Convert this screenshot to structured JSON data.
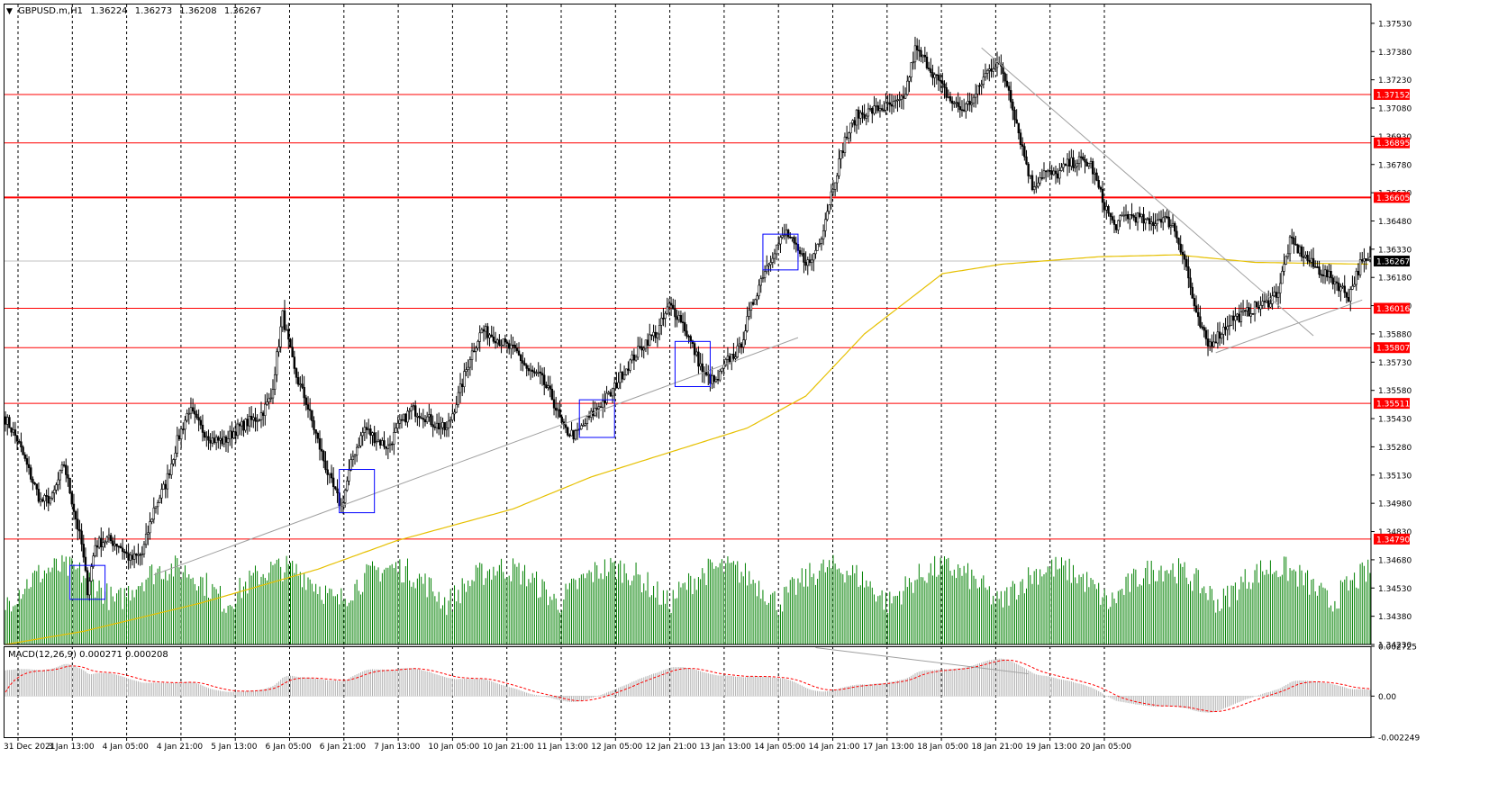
{
  "chart_data": [
    {
      "type": "candlestick",
      "header": {
        "symbol": "GBPUSD.m,H1",
        "open": "1.36224",
        "high": "1.36273",
        "low": "1.36208",
        "close": "1.36267"
      },
      "ylim": [
        1.3423,
        1.3763
      ],
      "y_ticks": [
        "1.37530",
        "1.37380",
        "1.37230",
        "1.37080",
        "1.36930",
        "1.36780",
        "1.36630",
        "1.36480",
        "1.36330",
        "1.36180",
        "1.36030",
        "1.35880",
        "1.35730",
        "1.35580",
        "1.35430",
        "1.35280",
        "1.35130",
        "1.34980",
        "1.34830",
        "1.34680",
        "1.34530",
        "1.34380",
        "1.34230"
      ],
      "x_ticks": [
        "31 Dec 2021",
        "3 Jan 13:00",
        "4 Jan 05:00",
        "4 Jan 21:00",
        "5 Jan 13:00",
        "6 Jan 05:00",
        "6 Jan 21:00",
        "7 Jan 13:00",
        "10 Jan 05:00",
        "10 Jan 21:00",
        "11 Jan 13:00",
        "12 Jan 05:00",
        "12 Jan 21:00",
        "13 Jan 13:00",
        "14 Jan 05:00",
        "14 Jan 21:00",
        "17 Jan 13:00",
        "18 Jan 05:00",
        "18 Jan 21:00",
        "19 Jan 13:00",
        "20 Jan 05:00"
      ],
      "current_price": "1.36267",
      "horizontal_levels": [
        {
          "value": 1.37152,
          "label": "1.37152"
        },
        {
          "value": 1.36895,
          "label": "1.36895"
        },
        {
          "value": 1.36605,
          "label": "1.36605"
        },
        {
          "value": 1.36016,
          "label": "1.36016"
        },
        {
          "value": 1.35807,
          "label": "1.35807"
        },
        {
          "value": 1.35511,
          "label": "1.35511"
        },
        {
          "value": 1.3479,
          "label": "1.34790"
        }
      ],
      "close_path": [
        [
          0,
          1.3543
        ],
        [
          6,
          1.3532
        ],
        [
          12,
          1.3515
        ],
        [
          18,
          1.3499
        ],
        [
          24,
          1.3501
        ],
        [
          30,
          1.3519
        ],
        [
          36,
          1.349
        ],
        [
          39,
          1.3476
        ],
        [
          42,
          1.3452
        ],
        [
          46,
          1.3476
        ],
        [
          52,
          1.3479
        ],
        [
          58,
          1.3476
        ],
        [
          64,
          1.3468
        ],
        [
          70,
          1.3471
        ],
        [
          76,
          1.3495
        ],
        [
          82,
          1.3508
        ],
        [
          88,
          1.3531
        ],
        [
          94,
          1.3548
        ],
        [
          100,
          1.3538
        ],
        [
          106,
          1.3532
        ],
        [
          112,
          1.3531
        ],
        [
          118,
          1.3537
        ],
        [
          124,
          1.3541
        ],
        [
          130,
          1.3544
        ],
        [
          136,
          1.3554
        ],
        [
          142,
          1.3598
        ],
        [
          148,
          1.3568
        ],
        [
          154,
          1.3552
        ],
        [
          160,
          1.3531
        ],
        [
          166,
          1.3511
        ],
        [
          172,
          1.3496
        ],
        [
          178,
          1.3523
        ],
        [
          184,
          1.3538
        ],
        [
          190,
          1.3532
        ],
        [
          196,
          1.3528
        ],
        [
          202,
          1.354
        ],
        [
          208,
          1.3548
        ],
        [
          214,
          1.3545
        ],
        [
          220,
          1.354
        ],
        [
          226,
          1.3537
        ],
        [
          232,
          1.3555
        ],
        [
          238,
          1.3576
        ],
        [
          244,
          1.359
        ],
        [
          250,
          1.3587
        ],
        [
          256,
          1.3582
        ],
        [
          262,
          1.3578
        ],
        [
          268,
          1.3568
        ],
        [
          274,
          1.3565
        ],
        [
          280,
          1.3554
        ],
        [
          286,
          1.3537
        ],
        [
          292,
          1.3534
        ],
        [
          298,
          1.3542
        ],
        [
          304,
          1.355
        ],
        [
          310,
          1.3556
        ],
        [
          316,
          1.3567
        ],
        [
          322,
          1.3576
        ],
        [
          328,
          1.3584
        ],
        [
          334,
          1.3589
        ],
        [
          340,
          1.3603
        ],
        [
          346,
          1.3596
        ],
        [
          352,
          1.3581
        ],
        [
          358,
          1.3566
        ],
        [
          364,
          1.3562
        ],
        [
          370,
          1.3574
        ],
        [
          376,
          1.358
        ],
        [
          382,
          1.3602
        ],
        [
          388,
          1.362
        ],
        [
          394,
          1.3633
        ],
        [
          400,
          1.3642
        ],
        [
          406,
          1.3631
        ],
        [
          412,
          1.3625
        ],
        [
          418,
          1.3641
        ],
        [
          424,
          1.3667
        ],
        [
          430,
          1.3691
        ],
        [
          436,
          1.3704
        ],
        [
          442,
          1.3706
        ],
        [
          448,
          1.3708
        ],
        [
          454,
          1.3709
        ],
        [
          460,
          1.3712
        ],
        [
          466,
          1.3739
        ],
        [
          472,
          1.3732
        ],
        [
          478,
          1.3722
        ],
        [
          484,
          1.3712
        ],
        [
          490,
          1.3707
        ],
        [
          496,
          1.3713
        ],
        [
          502,
          1.3726
        ],
        [
          508,
          1.3733
        ],
        [
          514,
          1.3718
        ],
        [
          520,
          1.3691
        ],
        [
          526,
          1.3666
        ],
        [
          532,
          1.3674
        ],
        [
          538,
          1.3672
        ],
        [
          544,
          1.3678
        ],
        [
          550,
          1.368
        ],
        [
          556,
          1.3678
        ],
        [
          562,
          1.3659
        ],
        [
          568,
          1.3645
        ],
        [
          574,
          1.3651
        ],
        [
          580,
          1.365
        ],
        [
          586,
          1.3646
        ],
        [
          592,
          1.365
        ],
        [
          598,
          1.3646
        ],
        [
          604,
          1.3628
        ],
        [
          610,
          1.3597
        ],
        [
          616,
          1.3582
        ],
        [
          622,
          1.3588
        ],
        [
          628,
          1.3596
        ],
        [
          634,
          1.3598
        ],
        [
          640,
          1.3602
        ],
        [
          646,
          1.3604
        ],
        [
          652,
          1.3611
        ],
        [
          658,
          1.3637
        ],
        [
          664,
          1.3631
        ],
        [
          670,
          1.3624
        ],
        [
          676,
          1.362
        ],
        [
          682,
          1.3615
        ],
        [
          688,
          1.3608
        ],
        [
          694,
          1.3625
        ],
        [
          700,
          1.3627
        ]
      ],
      "ma_path": [
        [
          0,
          1.3423
        ],
        [
          40,
          1.343
        ],
        [
          100,
          1.3445
        ],
        [
          160,
          1.3463
        ],
        [
          200,
          1.3478
        ],
        [
          260,
          1.3495
        ],
        [
          300,
          1.3512
        ],
        [
          340,
          1.3525
        ],
        [
          380,
          1.3538
        ],
        [
          410,
          1.3555
        ],
        [
          440,
          1.3588
        ],
        [
          480,
          1.362
        ],
        [
          510,
          1.3625
        ],
        [
          560,
          1.3629
        ],
        [
          600,
          1.363
        ],
        [
          640,
          1.3626
        ],
        [
          700,
          1.3625
        ]
      ],
      "volume_bars": 700,
      "markers": [
        {
          "t": 42,
          "from": 1.3447,
          "to": 1.3465
        },
        {
          "t": 180,
          "from": 1.3493,
          "to": 1.3516
        },
        {
          "t": 303,
          "from": 1.3533,
          "to": 1.3553
        },
        {
          "t": 352,
          "from": 1.356,
          "to": 1.3584
        },
        {
          "t": 397,
          "from": 1.3622,
          "to": 1.3641
        }
      ],
      "trendlines": [
        {
          "from": [
            76,
            1.346
          ],
          "to": [
            406,
            1.3586
          ]
        },
        {
          "from": [
            500,
            1.374
          ],
          "to": [
            670,
            1.3587
          ]
        },
        {
          "from": [
            620,
            1.3578
          ],
          "to": [
            695,
            1.3606
          ]
        }
      ]
    },
    {
      "type": "macd",
      "label": "MACD(12,26,9) 0.000271 0.000208",
      "ylim": [
        -0.002249,
        0.002725
      ],
      "y_ticks": [
        "0.002725",
        "0.00",
        "-0.002249"
      ],
      "trendline": {
        "from": [
          415,
          0.00265
        ],
        "to": [
          524,
          0.00122
        ]
      }
    }
  ]
}
